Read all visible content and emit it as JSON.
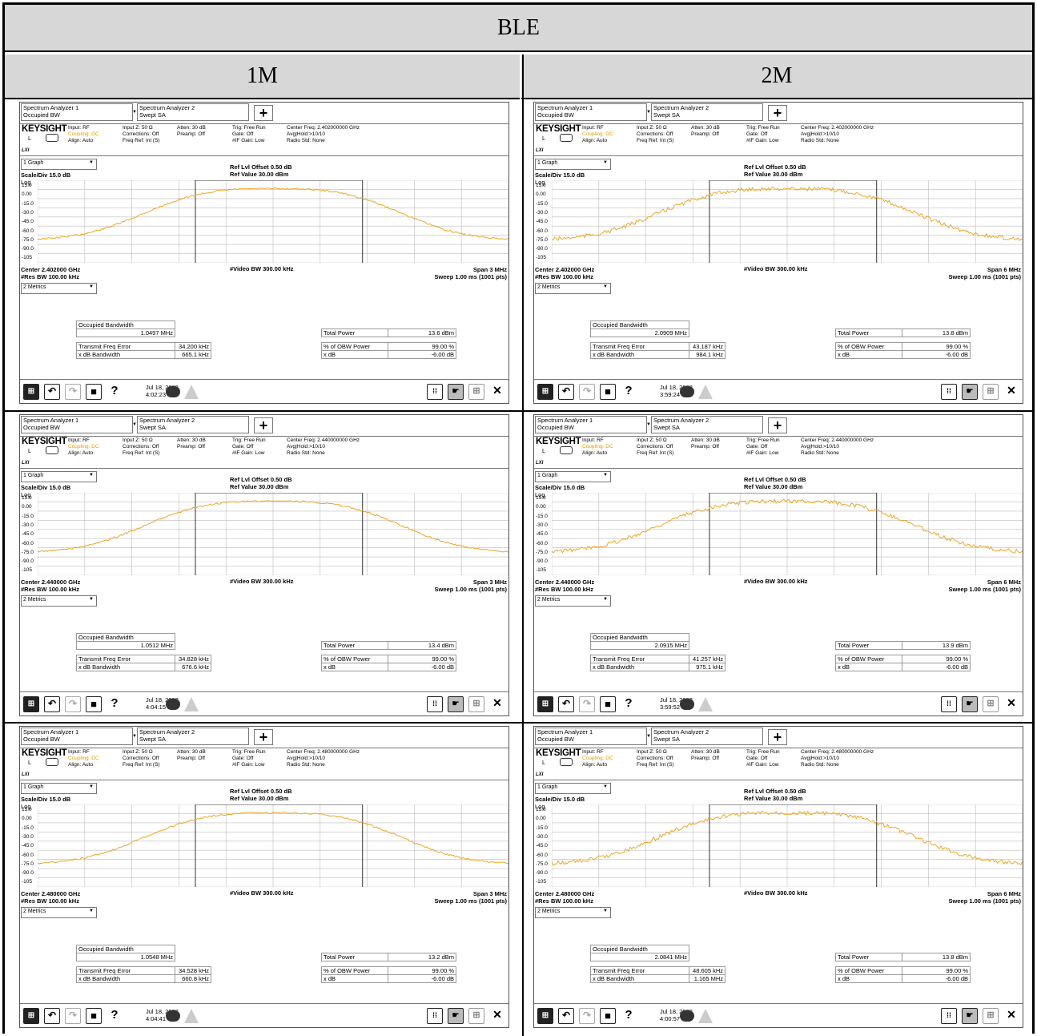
{
  "table": {
    "title": "BLE",
    "col_1m": "1M",
    "col_2m": "2M"
  },
  "ui": {
    "tab1_line1": "Spectrum Analyzer 1",
    "tab1_line2": "Occupied BW",
    "tab2_line1": "Spectrum Analyzer 2",
    "tab2_line2": "Swept SA",
    "plus": "+",
    "brand": "KEYSIGHT",
    "l": "L",
    "lxi": "LXI",
    "input": "Input: RF",
    "coupling": "Coupling: DC",
    "align": "Align: Auto",
    "inputz": "Input Z: 50 Ω",
    "corrections": "Corrections: Off",
    "freqref": "Freq Ref: Int (S)",
    "atten": "Atten: 30 dB",
    "preamp": "Preamp: Off",
    "trig": "Trig: Free Run",
    "gate": "Gate: Off",
    "ifgain": "#IF Gain: Low",
    "avg": "Avg|Hold:>10/10",
    "radiostd": "Radio Std: None",
    "graph_sel": "1 Graph",
    "scale": "Scale/Div 15.0 dB",
    "log": "Log",
    "refoffset": "Ref Lvl Offset 0.50 dB",
    "refvalue": "Ref Value 30.00 dBm",
    "resbw": "#Res BW 100.00 kHz",
    "vbw": "#Video BW 300.00 kHz",
    "sweep": "Sweep 1.00 ms (1001 pts)",
    "metrics_sel": "2 Metrics",
    "obw_label": "Occupied Bandwidth",
    "tp_label": "Total Power",
    "tfe_label": "Transmit Freq Error",
    "xdbbw_label": "x dB Bandwidth",
    "pobw_label": "% of OBW Power",
    "xdb_label": "x dB",
    "pobw_val": "99.00 %",
    "xdb_val": "-6.00 dB",
    "yticks": [
      "15.0",
      "0.00",
      "-15.0",
      "-30.0",
      "-45.0",
      "-60.0",
      "-75.0",
      "-90.0",
      "-105"
    ],
    "help": "?"
  },
  "panels": [
    {
      "center_freq": "Center Freq: 2.402000000 GHz",
      "center": "Center 2.402000 GHz",
      "span": "Span 3 MHz",
      "obw": "1.0497 MHz",
      "tp": "13.6 dBm",
      "tfe": "34.200 kHz",
      "xdbbw": "665.1 kHz",
      "date": "Jul 18, 2023",
      "time": "4:02:23 PM",
      "mode": "1M"
    },
    {
      "center_freq": "Center Freq: 2.402000000 GHz",
      "center": "Center 2.402000 GHz",
      "span": "Span 6 MHz",
      "obw": "2.0909 MHz",
      "tp": "13.8 dBm",
      "tfe": "43.187 kHz",
      "xdbbw": "984.1 kHz",
      "date": "Jul 18, 2023",
      "time": "3:59:24 PM",
      "mode": "2M"
    },
    {
      "center_freq": "Center Freq: 2.440000000 GHz",
      "center": "Center 2.440000 GHz",
      "span": "Span 3 MHz",
      "obw": "1.0512 MHz",
      "tp": "13.4 dBm",
      "tfe": "34.828 kHz",
      "xdbbw": "676.6 kHz",
      "date": "Jul 18, 2023",
      "time": "4:04:15 PM",
      "mode": "1M"
    },
    {
      "center_freq": "Center Freq: 2.440000000 GHz",
      "center": "Center 2.440000 GHz",
      "span": "Span 6 MHz",
      "obw": "2.0915 MHz",
      "tp": "13.9 dBm",
      "tfe": "41.257 kHz",
      "xdbbw": "975.1 kHz",
      "date": "Jul 18, 2023",
      "time": "3:59:52 PM",
      "mode": "2M"
    },
    {
      "center_freq": "Center Freq: 2.480000000 GHz",
      "center": "Center 2.480000 GHz",
      "span": "Span 3 MHz",
      "obw": "1.0548 MHz",
      "tp": "13.2 dBm",
      "tfe": "34.528 kHz",
      "xdbbw": "660.8 kHz",
      "date": "Jul 18, 2023",
      "time": "4:04:41 PM",
      "mode": "1M"
    },
    {
      "center_freq": "Center Freq: 2.480000000 GHz",
      "center": "Center 2.480000 GHz",
      "span": "Span 6 MHz",
      "obw": "2.0841 MHz",
      "tp": "13.8 dBm",
      "tfe": "48.605 kHz",
      "xdbbw": "1.165 MHz",
      "date": "Jul 18, 2023",
      "time": "4:00:57 PM",
      "mode": "2M"
    }
  ],
  "colors": {
    "trace": "#e8a82a",
    "grid": "#bdbdbd",
    "header_bg": "#d7d7d7"
  }
}
